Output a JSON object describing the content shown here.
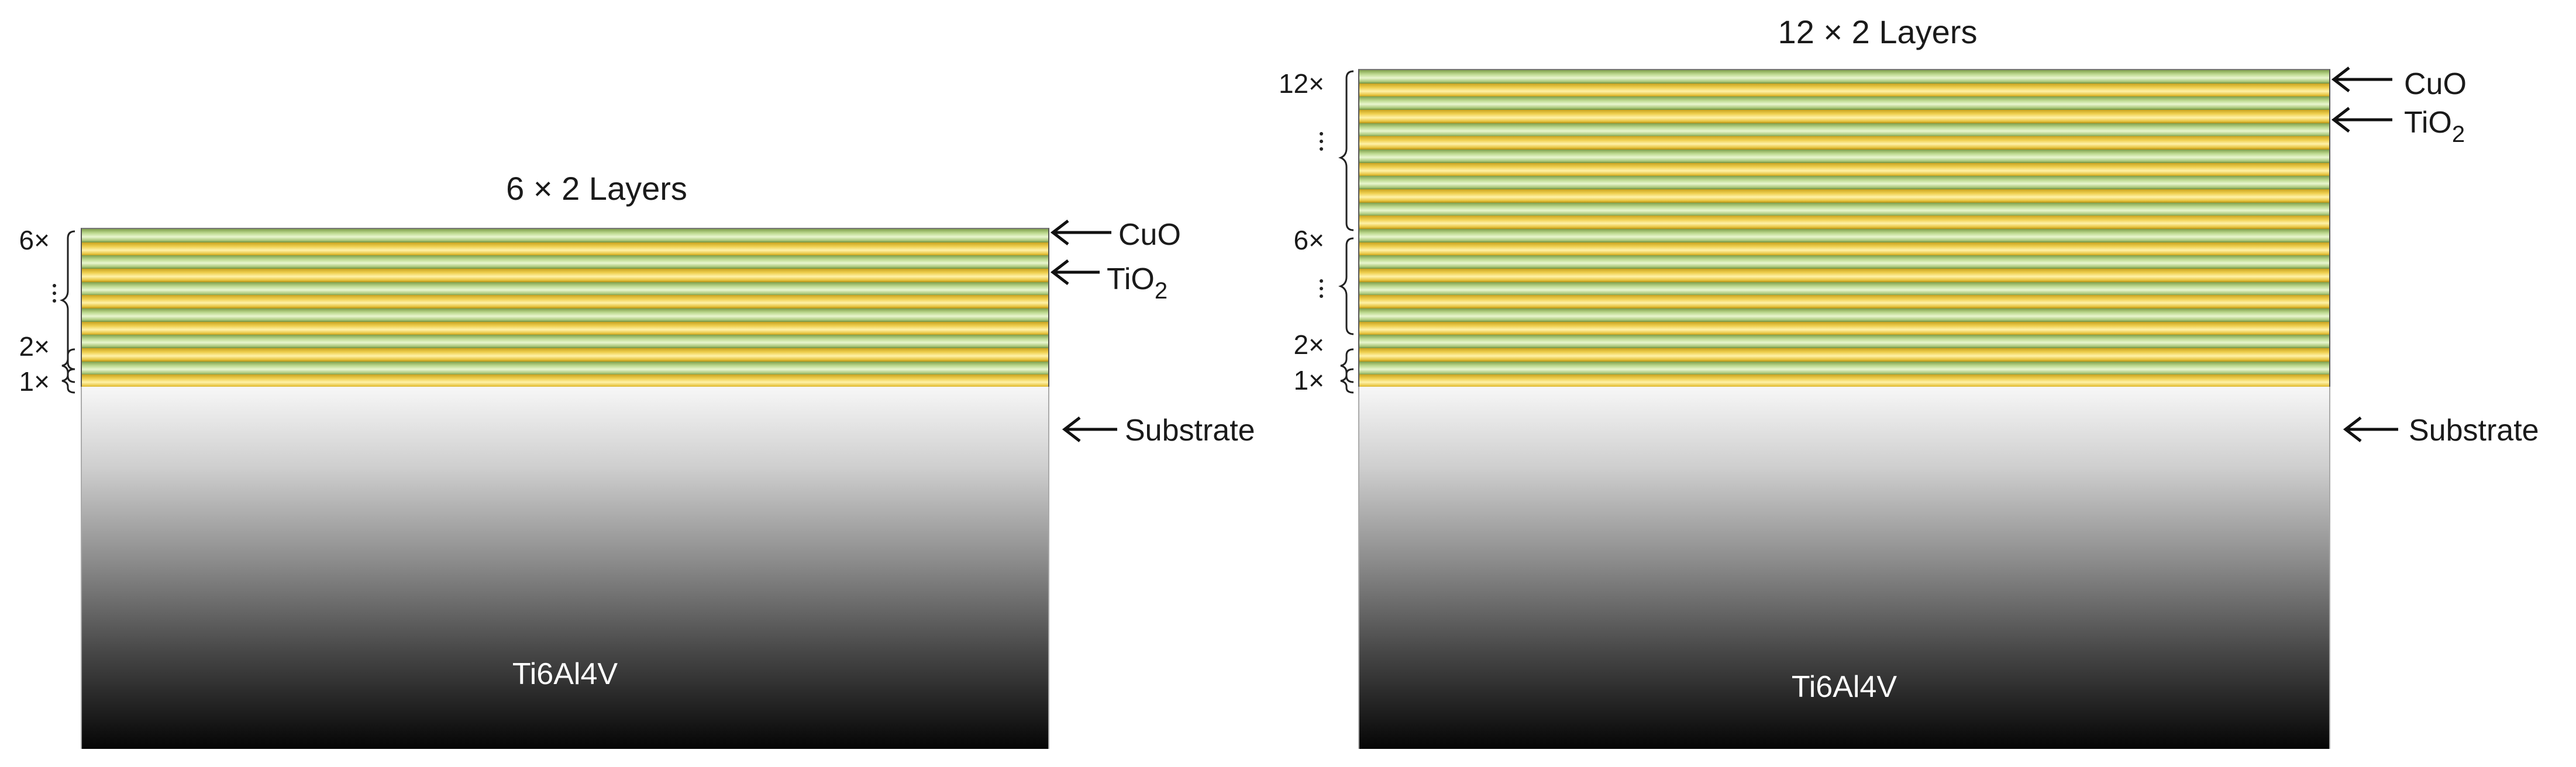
{
  "layers": {
    "cuo": {
      "label": "CuO",
      "color": "#bcd88e"
    },
    "tio2": {
      "label": "TiO",
      "subscript": "2",
      "color": "#efd050"
    }
  },
  "substrate_label": "Substrate",
  "panels": [
    {
      "title": "6 × 2 Layers",
      "bilayers": 6,
      "multipliers": [
        "6×",
        "2×",
        "1×"
      ],
      "substrate_material": "Ti6Al4V"
    },
    {
      "title": "12 × 2 Layers",
      "bilayers": 12,
      "multipliers": [
        "12×",
        "6×",
        "2×",
        "1×"
      ],
      "substrate_material": "Ti6Al4V"
    }
  ]
}
